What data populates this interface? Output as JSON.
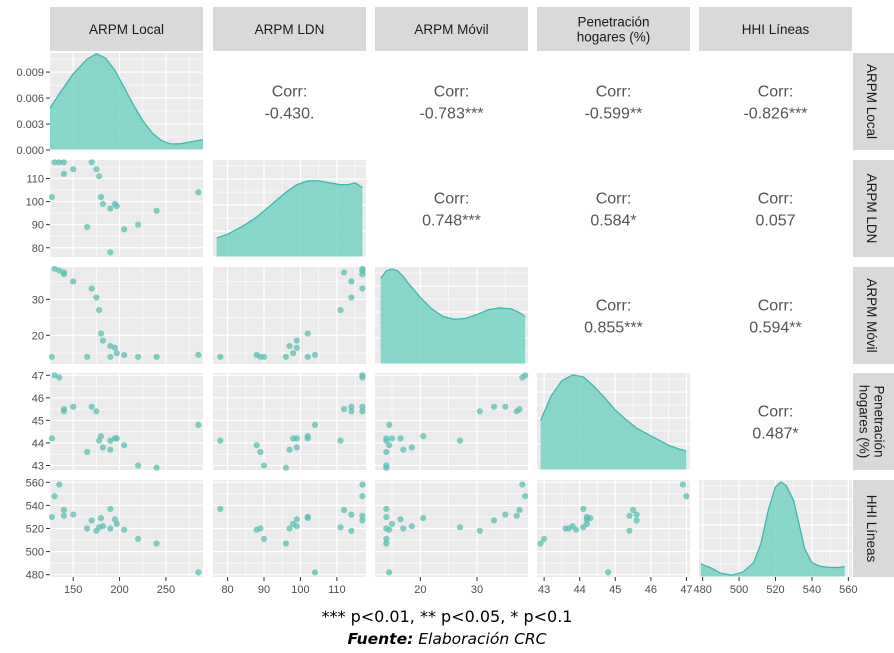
{
  "chart_data": {
    "type": "scatter",
    "variables": [
      {
        "label": "ARPM Local",
        "range": [
          125,
          290
        ],
        "ticks": [
          150,
          200,
          250
        ]
      },
      {
        "label": "ARPM LDN",
        "range": [
          76,
          118
        ],
        "ticks": [
          80,
          90,
          100,
          110
        ]
      },
      {
        "label": "ARPM Móvil",
        "range": [
          12,
          39
        ],
        "ticks": [
          20,
          30
        ]
      },
      {
        "label": "Penetración hogares (%)",
        "label_lines": [
          "Penetración",
          "hogares (%)"
        ],
        "range": [
          42.8,
          47.1
        ],
        "ticks": [
          43,
          44,
          45,
          46,
          47
        ]
      },
      {
        "label": "HHI Líneas",
        "range": [
          478,
          562
        ],
        "ticks": [
          480,
          500,
          520,
          540,
          560
        ]
      }
    ],
    "density_ticks": {
      "values": [
        0.0,
        0.003,
        0.006,
        0.009
      ],
      "labels": [
        "0.000",
        "0.003",
        "0.006",
        "0.009"
      ],
      "max": 0.0112
    },
    "correlations": [
      {
        "row": 0,
        "col": 1,
        "label": "Corr:",
        "value": "-0.430."
      },
      {
        "row": 0,
        "col": 2,
        "label": "Corr:",
        "value": "-0.783***"
      },
      {
        "row": 0,
        "col": 3,
        "label": "Corr:",
        "value": "-0.599**"
      },
      {
        "row": 0,
        "col": 4,
        "label": "Corr:",
        "value": "-0.826***"
      },
      {
        "row": 1,
        "col": 2,
        "label": "Corr:",
        "value": "0.748***"
      },
      {
        "row": 1,
        "col": 3,
        "label": "Corr:",
        "value": "0.584*"
      },
      {
        "row": 1,
        "col": 4,
        "label": "Corr:",
        "value": "0.057"
      },
      {
        "row": 2,
        "col": 3,
        "label": "Corr:",
        "value": "0.855***"
      },
      {
        "row": 2,
        "col": 4,
        "label": "Corr:",
        "value": "0.594**"
      },
      {
        "row": 3,
        "col": 4,
        "label": "Corr:",
        "value": "0.487*"
      }
    ],
    "observations": [
      [
        130,
        117,
        38.5,
        47.0,
        548
      ],
      [
        135,
        117,
        38.0,
        46.9,
        558
      ],
      [
        140,
        112,
        37.5,
        45.5,
        536
      ],
      [
        140,
        117,
        37.0,
        45.4,
        531
      ],
      [
        150,
        114,
        35.0,
        45.6,
        532
      ],
      [
        170,
        117,
        33.0,
        45.6,
        527
      ],
      [
        175,
        114,
        30.5,
        45.4,
        518
      ],
      [
        178,
        111,
        27.0,
        44.1,
        521
      ],
      [
        180,
        102,
        20.5,
        44.3,
        529
      ],
      [
        182,
        99,
        18.5,
        43.8,
        522
      ],
      [
        190,
        97,
        17.0,
        43.7,
        520
      ],
      [
        195,
        99,
        16.5,
        44.2,
        528
      ],
      [
        197,
        98,
        15.0,
        44.2,
        524
      ],
      [
        205,
        88,
        14.5,
        43.9,
        519
      ],
      [
        220,
        90,
        14.0,
        43.0,
        511
      ],
      [
        240,
        96,
        14.0,
        42.9,
        507
      ],
      [
        285,
        104,
        14.5,
        44.8,
        482
      ],
      [
        127,
        102,
        14.0,
        44.2,
        530
      ],
      [
        165,
        89,
        14.0,
        43.6,
        520
      ],
      [
        190,
        78,
        14.0,
        44.1,
        537
      ]
    ],
    "densities": [
      {
        "col": 0,
        "curve": [
          [
            125,
            0.0048
          ],
          [
            135,
            0.0065
          ],
          [
            150,
            0.0088
          ],
          [
            165,
            0.0105
          ],
          [
            175,
            0.0111
          ],
          [
            185,
            0.0106
          ],
          [
            195,
            0.0092
          ],
          [
            205,
            0.0072
          ],
          [
            215,
            0.0052
          ],
          [
            225,
            0.0034
          ],
          [
            235,
            0.002
          ],
          [
            245,
            0.0011
          ],
          [
            255,
            0.0007
          ],
          [
            265,
            0.0007
          ],
          [
            275,
            0.0009
          ],
          [
            285,
            0.0011
          ],
          [
            290,
            0.0012
          ]
        ]
      },
      {
        "col": 1,
        "curve": [
          [
            77,
            0.2
          ],
          [
            80,
            0.24
          ],
          [
            84,
            0.32
          ],
          [
            88,
            0.42
          ],
          [
            92,
            0.55
          ],
          [
            96,
            0.68
          ],
          [
            99,
            0.76
          ],
          [
            102,
            0.8
          ],
          [
            105,
            0.8
          ],
          [
            108,
            0.78
          ],
          [
            111,
            0.76
          ],
          [
            113,
            0.76
          ],
          [
            115,
            0.78
          ],
          [
            117,
            0.73
          ]
        ]
      },
      {
        "col": 2,
        "curve": [
          [
            13,
            0.9
          ],
          [
            14,
            0.98
          ],
          [
            15,
            1.0
          ],
          [
            16,
            0.98
          ],
          [
            17,
            0.92
          ],
          [
            18,
            0.84
          ],
          [
            20,
            0.7
          ],
          [
            22,
            0.58
          ],
          [
            24,
            0.5
          ],
          [
            26,
            0.47
          ],
          [
            28,
            0.48
          ],
          [
            30,
            0.52
          ],
          [
            32,
            0.57
          ],
          [
            34,
            0.59
          ],
          [
            36,
            0.58
          ],
          [
            37.5,
            0.54
          ],
          [
            38.5,
            0.5
          ]
        ]
      },
      {
        "col": 3,
        "curve": [
          [
            42.9,
            0.52
          ],
          [
            43.2,
            0.78
          ],
          [
            43.5,
            0.94
          ],
          [
            43.8,
            1.0
          ],
          [
            44.1,
            0.98
          ],
          [
            44.4,
            0.88
          ],
          [
            44.7,
            0.76
          ],
          [
            45.0,
            0.63
          ],
          [
            45.3,
            0.53
          ],
          [
            45.6,
            0.44
          ],
          [
            45.9,
            0.38
          ],
          [
            46.2,
            0.32
          ],
          [
            46.5,
            0.26
          ],
          [
            46.8,
            0.22
          ],
          [
            47.0,
            0.2
          ]
        ]
      },
      {
        "col": 4,
        "curve": [
          [
            479,
            0.14
          ],
          [
            484,
            0.1
          ],
          [
            490,
            0.04
          ],
          [
            496,
            0.02
          ],
          [
            502,
            0.05
          ],
          [
            508,
            0.15
          ],
          [
            512,
            0.35
          ],
          [
            516,
            0.7
          ],
          [
            520,
            0.95
          ],
          [
            523,
            1.0
          ],
          [
            526,
            0.96
          ],
          [
            530,
            0.8
          ],
          [
            533,
            0.55
          ],
          [
            536,
            0.3
          ],
          [
            540,
            0.15
          ],
          [
            545,
            0.11
          ],
          [
            550,
            0.1
          ],
          [
            555,
            0.1
          ],
          [
            558,
            0.11
          ]
        ]
      }
    ]
  },
  "caption": {
    "note": "*** p<0.01, ** p<0.05, * p<0.1",
    "source_label": "Fuente:",
    "source_text": "Elaboración CRC"
  },
  "colors": {
    "panel_bg": "#ebebeb",
    "strip_bg": "#d9d9d9",
    "grid": "#ffffff",
    "accent": "#3fb8ac",
    "density_fill": "#6fcfc2",
    "point": "#5cbfb3"
  }
}
